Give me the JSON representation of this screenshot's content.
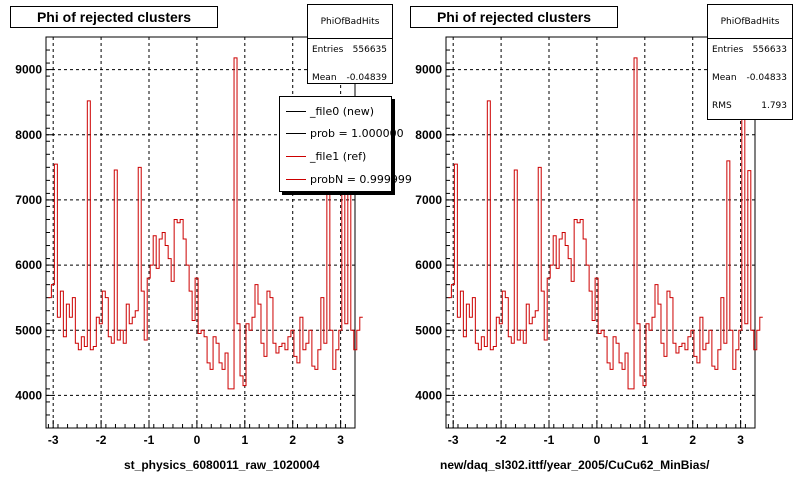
{
  "colors": {
    "ref": "#cc0000",
    "new": "#000000",
    "grid": "#000000"
  },
  "panels": [
    {
      "title": "Phi of rejected clusters",
      "xlabel": "st_physics_6080011_raw_1020004",
      "stats": {
        "name": "PhiOfBadHits",
        "entries_label": "Entries",
        "entries": "556635",
        "mean_label": "Mean",
        "mean": "-0.04839"
      },
      "legend": [
        {
          "label": "_file0 (new)",
          "color": "#000000"
        },
        {
          "label": "prob = 1.000000",
          "color": "#000000"
        },
        {
          "label": "_file1 (ref)",
          "color": "#cc0000"
        },
        {
          "label": "probN = 0.999999",
          "color": "#cc0000"
        }
      ]
    },
    {
      "title": "Phi of rejected clusters",
      "xlabel": "new/daq_sl302.ittf/year_2005/CuCu62_MinBias/",
      "stats": {
        "name": "PhiOfBadHits",
        "entries_label": "Entries",
        "entries": "556633",
        "mean_label": "Mean",
        "mean": "-0.04833",
        "rms_label": "RMS",
        "rms": "1.793"
      }
    }
  ],
  "chart_data": [
    {
      "type": "histogram",
      "title": "Phi of rejected clusters",
      "xlabel": "st_physics_6080011_raw_1020004",
      "xlim": [
        -3.15,
        3.3
      ],
      "ylim": [
        3500,
        9500
      ],
      "xticks": [
        -3,
        -2,
        -1,
        0,
        1,
        2,
        3
      ],
      "yticks": [
        4000,
        5000,
        6000,
        7000,
        8000,
        9000
      ],
      "grid": true,
      "series_name": "_file1 (ref)",
      "bins_x_start": -3.1,
      "bin_width": 0.0625,
      "values": [
        5500,
        5700,
        7550,
        5200,
        5600,
        4900,
        5400,
        5200,
        5500,
        4800,
        4700,
        4900,
        4750,
        8520,
        4700,
        4750,
        5200,
        5100,
        5600,
        5500,
        4900,
        4800,
        7460,
        4850,
        5000,
        4800,
        5400,
        5100,
        5200,
        5300,
        7500,
        5600,
        4850,
        5800,
        6000,
        6450,
        5950,
        6400,
        6500,
        6300,
        6100,
        5750,
        6700,
        6650,
        6700,
        6400,
        6000,
        5600,
        5150,
        5800,
        4950,
        5000,
        4900,
        4500,
        4400,
        4900,
        4800,
        4500,
        4400,
        4650,
        4100,
        4100,
        9180,
        5100,
        4300,
        4150,
        5100,
        5000,
        5200,
        5700,
        5400,
        4800,
        4600,
        5600,
        5500,
        4800,
        4650,
        4750,
        4800,
        4700,
        4900,
        5000,
        4600,
        4500,
        5200,
        4700,
        4800,
        5000,
        4450,
        4400,
        4700,
        5500,
        4800,
        7600,
        5000,
        4400,
        4700,
        5000,
        8350,
        5100,
        7450,
        5000,
        4700,
        5000,
        5200
      ]
    },
    {
      "type": "histogram",
      "title": "Phi of rejected clusters",
      "xlabel": "new/daq_sl302.ittf/year_2005/CuCu62_MinBias/",
      "xlim": [
        -3.15,
        3.3
      ],
      "ylim": [
        3500,
        9500
      ],
      "xticks": [
        -3,
        -2,
        -1,
        0,
        1,
        2,
        3
      ],
      "yticks": [
        4000,
        5000,
        6000,
        7000,
        8000,
        9000
      ],
      "grid": true,
      "bins_x_start": -3.1,
      "bin_width": 0.0625,
      "values": [
        5500,
        5700,
        7550,
        5200,
        5600,
        4900,
        5400,
        5200,
        5500,
        4800,
        4700,
        4900,
        4750,
        8520,
        4700,
        4750,
        5200,
        5100,
        5600,
        5500,
        4900,
        4800,
        7460,
        4850,
        5000,
        4800,
        5400,
        5100,
        5200,
        5300,
        7500,
        5600,
        4850,
        5800,
        6000,
        6450,
        5950,
        6400,
        6500,
        6300,
        6100,
        5750,
        6700,
        6650,
        6700,
        6400,
        6000,
        5600,
        5150,
        5800,
        4950,
        5000,
        4900,
        4500,
        4400,
        4900,
        4800,
        4500,
        4400,
        4650,
        4100,
        4100,
        9180,
        5100,
        4300,
        4150,
        5100,
        5000,
        5200,
        5700,
        5400,
        4800,
        4600,
        5600,
        5500,
        4800,
        4650,
        4750,
        4800,
        4700,
        4900,
        5000,
        4600,
        4500,
        5200,
        4700,
        4800,
        5000,
        4450,
        4400,
        4700,
        5500,
        4800,
        7600,
        5000,
        4400,
        4700,
        5000,
        8350,
        5100,
        7450,
        5000,
        4700,
        5000,
        5200
      ]
    }
  ]
}
